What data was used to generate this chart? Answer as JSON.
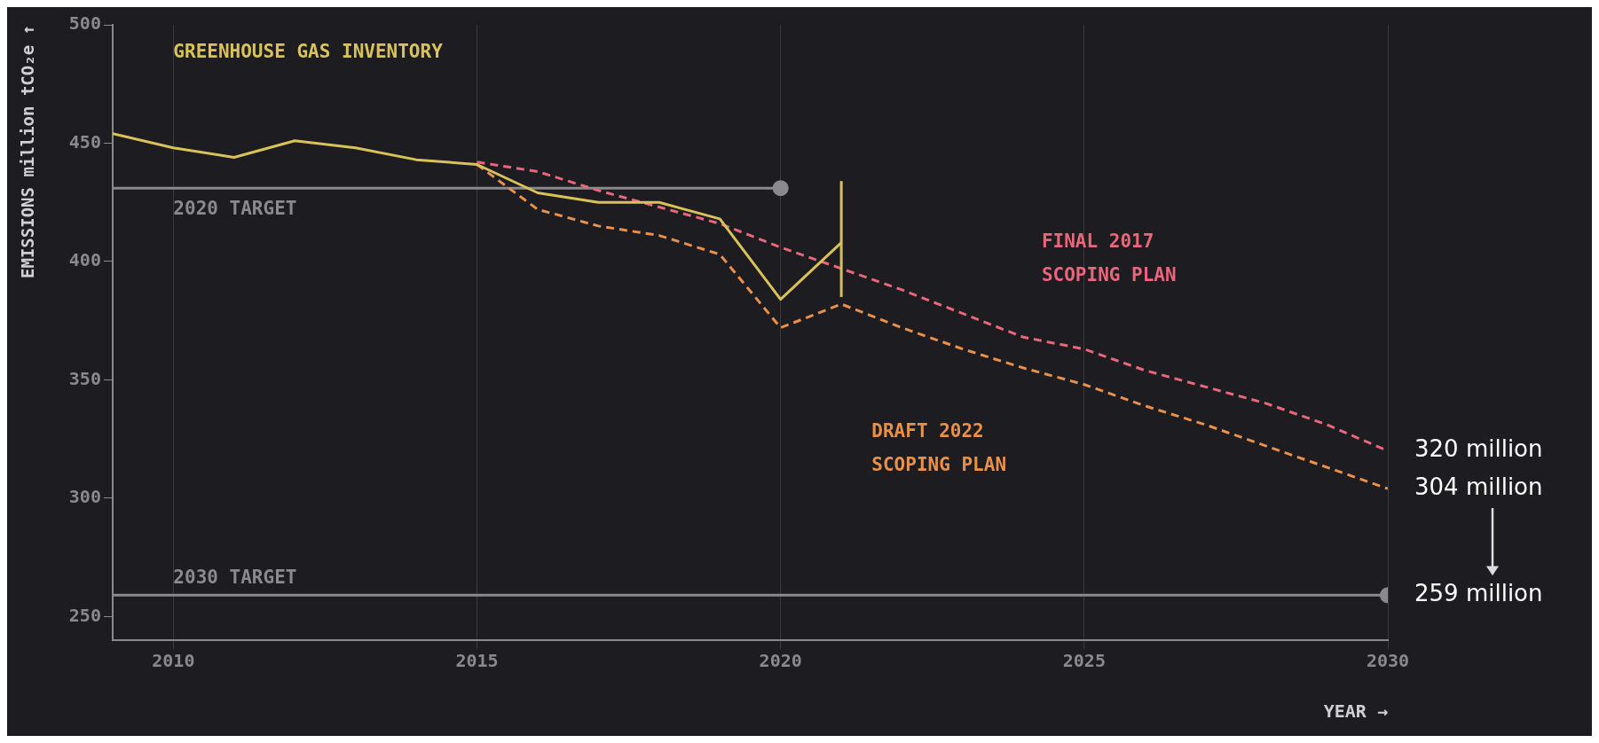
{
  "chart_data": {
    "type": "line",
    "xlabel": "YEAR →",
    "ylabel": "EMISSIONS million tCO₂e ↑",
    "xlim": [
      2009,
      2030
    ],
    "xticks": [
      2010,
      2015,
      2020,
      2025,
      2030
    ],
    "ylim": [
      240,
      500
    ],
    "yticks": [
      250,
      300,
      350,
      400,
      450,
      500
    ],
    "grid": "x",
    "legend": false,
    "series": [
      {
        "name": "GREENHOUSE GAS INVENTORY",
        "color": "#d9c25a",
        "line_style": "solid",
        "x": [
          2009,
          2010,
          2011,
          2012,
          2013,
          2014,
          2015,
          2016,
          2017,
          2018,
          2019,
          2020,
          2021
        ],
        "values": [
          454,
          448,
          444,
          451,
          448,
          443,
          441,
          429,
          425,
          425,
          418,
          384,
          408
        ],
        "errors": [
          null,
          null,
          null,
          null,
          null,
          null,
          null,
          null,
          null,
          null,
          null,
          null,
          [
            385,
            434
          ]
        ]
      },
      {
        "name": "FINAL 2017 SCOPING PLAN",
        "color": "#e8677a",
        "line_style": "dashed",
        "x": [
          2015,
          2016,
          2017,
          2018,
          2019,
          2020,
          2021,
          2022,
          2023,
          2024,
          2025,
          2026,
          2027,
          2028,
          2029,
          2030
        ],
        "values": [
          442,
          438,
          430,
          423,
          416,
          406,
          397,
          388,
          378,
          368,
          363,
          354,
          347,
          340,
          331,
          320
        ]
      },
      {
        "name": "DRAFT 2022 SCOPING PLAN",
        "color": "#e9914a",
        "line_style": "dashed",
        "x": [
          2015,
          2016,
          2017,
          2018,
          2019,
          2020,
          2021,
          2022,
          2023,
          2024,
          2025,
          2026,
          2027,
          2028,
          2029,
          2030
        ],
        "values": [
          441,
          422,
          415,
          411,
          403,
          372,
          382,
          372,
          363,
          355,
          348,
          339,
          331,
          322,
          313,
          304
        ]
      },
      {
        "name": "2020 TARGET",
        "color": "#8a8a8e",
        "line_style": "solid",
        "marker": "circle",
        "x": [
          2009,
          2020
        ],
        "values": [
          431,
          431
        ]
      },
      {
        "name": "2030 TARGET",
        "color": "#8a8a8e",
        "line_style": "solid",
        "marker": "circle",
        "x": [
          2009,
          2030
        ],
        "values": [
          259,
          259
        ]
      }
    ],
    "annotations": [
      "320 million",
      "304 million",
      "259 million"
    ]
  }
}
